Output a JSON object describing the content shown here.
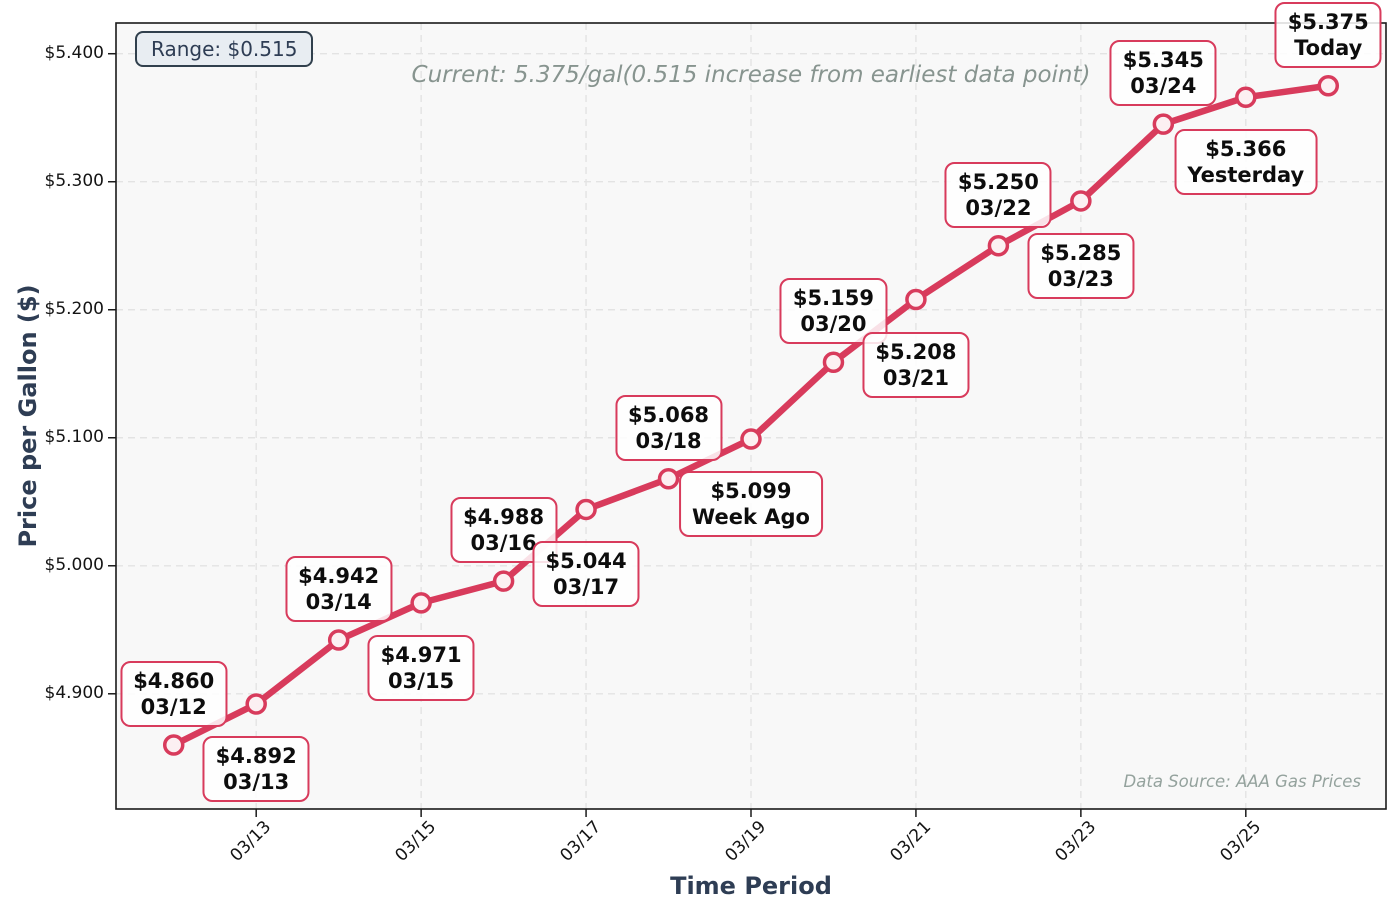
{
  "chart_data": {
    "type": "line",
    "title": "Current: 5.375/gal(0.515 increase from earliest data point)",
    "xlabel": "Time Period",
    "ylabel": "Price per Gallon ($)",
    "range_badge": "Range: $0.515",
    "data_source": "Data Source: AAA Gas Prices",
    "legend_position": "none",
    "grid": "dashed",
    "ylim": [
      4.81,
      5.424
    ],
    "xlim_day_index": [
      -0.7,
      14.7
    ],
    "y_ticks": [
      4.9,
      5.0,
      5.1,
      5.2,
      5.3,
      5.4
    ],
    "y_tick_labels": [
      "$4.900",
      "$5.000",
      "$5.100",
      "$5.200",
      "$5.300",
      "$5.400"
    ],
    "x_ticks": [
      {
        "day_index": 1,
        "label": "03/13"
      },
      {
        "day_index": 3,
        "label": "03/15"
      },
      {
        "day_index": 5,
        "label": "03/17"
      },
      {
        "day_index": 7,
        "label": "03/19"
      },
      {
        "day_index": 9,
        "label": "03/21"
      },
      {
        "day_index": 11,
        "label": "03/23"
      },
      {
        "day_index": 13,
        "label": "03/25"
      }
    ],
    "points": [
      {
        "date": "03/12",
        "value": 4.86,
        "label_line1": "$4.860",
        "label_line2": "03/12",
        "label_side": "above"
      },
      {
        "date": "03/13",
        "value": 4.892,
        "label_line1": "$4.892",
        "label_line2": "03/13",
        "label_side": "below"
      },
      {
        "date": "03/14",
        "value": 4.942,
        "label_line1": "$4.942",
        "label_line2": "03/14",
        "label_side": "above"
      },
      {
        "date": "03/15",
        "value": 4.971,
        "label_line1": "$4.971",
        "label_line2": "03/15",
        "label_side": "below"
      },
      {
        "date": "03/16",
        "value": 4.988,
        "label_line1": "$4.988",
        "label_line2": "03/16",
        "label_side": "above"
      },
      {
        "date": "03/17",
        "value": 5.044,
        "label_line1": "$5.044",
        "label_line2": "03/17",
        "label_side": "below"
      },
      {
        "date": "03/18",
        "value": 5.068,
        "label_line1": "$5.068",
        "label_line2": "03/18",
        "label_side": "above"
      },
      {
        "date": "03/19",
        "value": 5.099,
        "label_line1": "$5.099",
        "label_line2": "Week Ago",
        "label_side": "below"
      },
      {
        "date": "03/20",
        "value": 5.159,
        "label_line1": "$5.159",
        "label_line2": "03/20",
        "label_side": "above"
      },
      {
        "date": "03/21",
        "value": 5.208,
        "label_line1": "$5.208",
        "label_line2": "03/21",
        "label_side": "below"
      },
      {
        "date": "03/22",
        "value": 5.25,
        "label_line1": "$5.250",
        "label_line2": "03/22",
        "label_side": "above"
      },
      {
        "date": "03/23",
        "value": 5.285,
        "label_line1": "$5.285",
        "label_line2": "03/23",
        "label_side": "below"
      },
      {
        "date": "03/24",
        "value": 5.345,
        "label_line1": "$5.345",
        "label_line2": "03/24",
        "label_side": "above"
      },
      {
        "date": "03/25",
        "value": 5.366,
        "label_line1": "$5.366",
        "label_line2": "Yesterday",
        "label_side": "below"
      },
      {
        "date": "03/26",
        "value": 5.375,
        "label_line1": "$5.375",
        "label_line2": "Today",
        "label_side": "above"
      }
    ],
    "colors": {
      "line": "#d83b5c",
      "marker_fill": "#fcf0f2",
      "annotation_border": "#d83b5c",
      "annotation_fill": "rgba(255,255,255,0.85)",
      "axis_title_text": "#2e3d54",
      "tick_text": "#141414",
      "muted_text": "#87948f",
      "badge_background": "#e8edf2",
      "badge_border": "#31404d",
      "plot_background": "#f8f8f8",
      "grid_line": "#e3e3e3",
      "spine": "#1a1a1a"
    }
  }
}
